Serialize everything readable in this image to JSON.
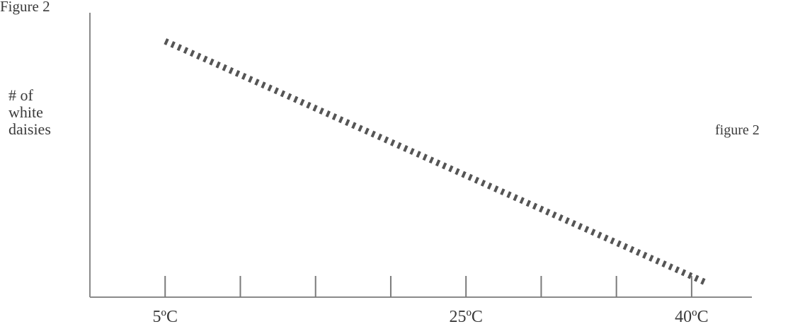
{
  "header": {
    "caption": "Figure 2"
  },
  "chart_data": {
    "type": "line",
    "title": "",
    "ylabel": "# of white daisies",
    "ylabel_lines": [
      "# of",
      "white",
      "daisies"
    ],
    "xlabel": "",
    "annotation": "figure 2",
    "x_tick_labels": [
      {
        "value": 5,
        "label": "5ºC"
      },
      {
        "value": 25,
        "label": "25ºC"
      },
      {
        "value": 40,
        "label": "40ºC"
      }
    ],
    "x_tick_values": [
      5,
      10,
      15,
      20,
      25,
      30,
      35,
      40
    ],
    "xlim": [
      0,
      42.5
    ],
    "ylim": [
      0,
      100
    ],
    "series": [
      {
        "x": [
          5,
          41
        ],
        "y": [
          90,
          5
        ],
        "style": "dashed"
      }
    ],
    "grid": false,
    "legend": "none"
  }
}
